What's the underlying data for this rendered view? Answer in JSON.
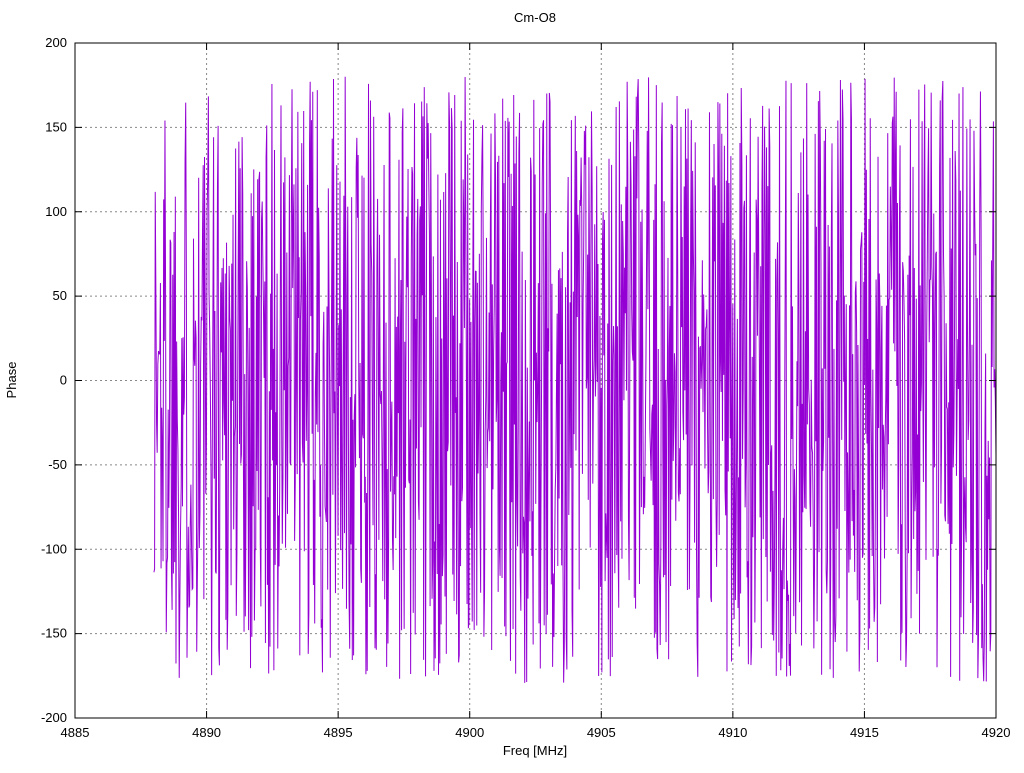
{
  "chart_data": {
    "type": "line",
    "title": "Cm-O8",
    "xlabel": "Freq [MHz]",
    "ylabel": "Phase",
    "xlim": [
      4885,
      4920
    ],
    "ylim": [
      -200,
      200
    ],
    "x_ticks": [
      4885,
      4890,
      4895,
      4900,
      4905,
      4910,
      4915,
      4920
    ],
    "y_ticks": [
      -200,
      -150,
      -100,
      -50,
      0,
      50,
      100,
      150,
      200
    ],
    "grid": true,
    "grid_style": "dotted-gray",
    "legend": "none",
    "series": [
      {
        "name": "phase-trace",
        "color": "#9400D3",
        "style": "connected-line-noise",
        "distribution": "uniform-random",
        "x_start": 4888,
        "x_end": 4920,
        "n_points": 1300,
        "y_min": -180,
        "y_max": 180,
        "seed": 1337
      }
    ],
    "colors": {
      "background": "#ffffff",
      "border": "#000000",
      "grid": "#888888",
      "trace": "#9400D3",
      "text": "#000000"
    }
  }
}
